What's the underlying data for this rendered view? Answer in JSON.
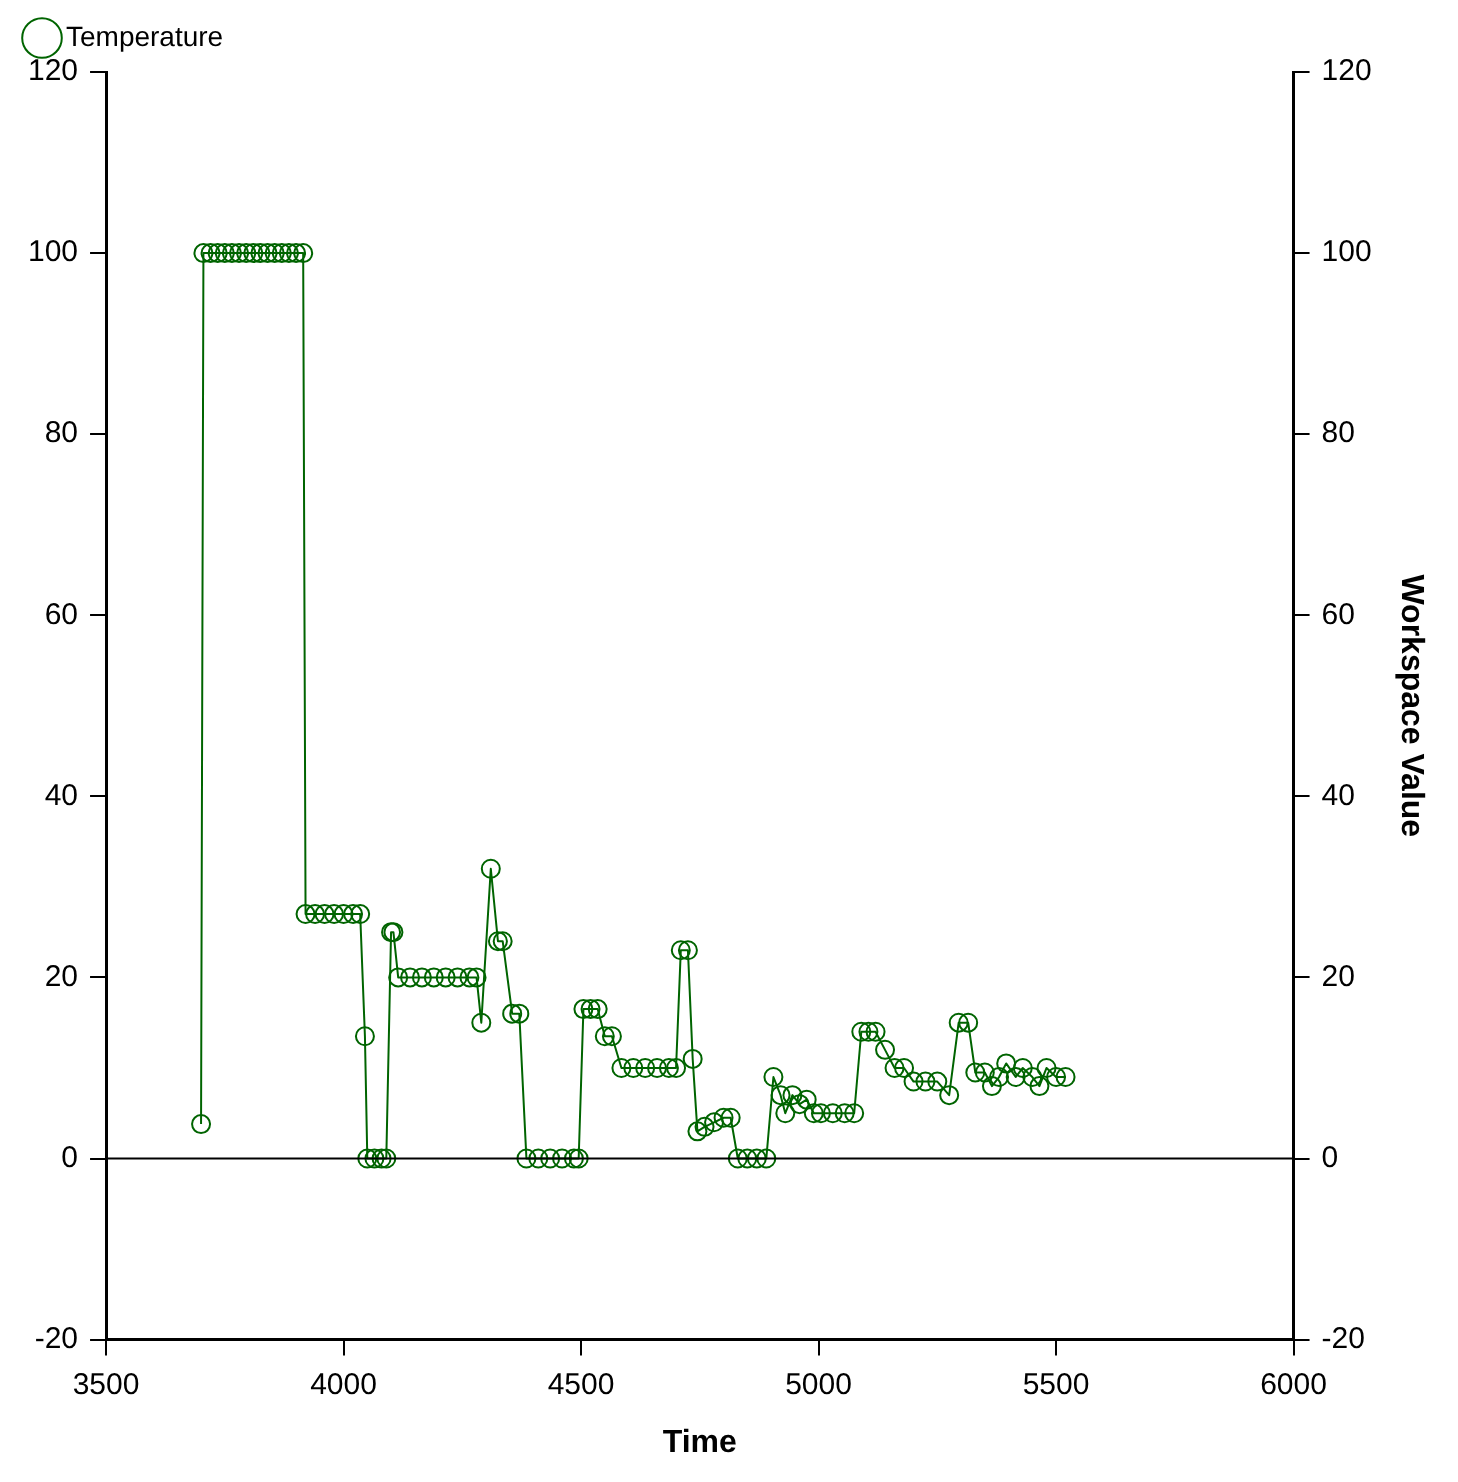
{
  "chart_data": {
    "type": "line",
    "xlabel": "Time",
    "y2label": "Workspace Value",
    "legend": "top left",
    "marker": "circle",
    "line_style": "solid",
    "grid": false,
    "xlim": [
      3500,
      6000
    ],
    "xticks": [
      3500,
      4000,
      4500,
      5000,
      5500,
      6000
    ],
    "ylim": [
      -20,
      120
    ],
    "yticks": [
      -20,
      0,
      20,
      40,
      60,
      80,
      100,
      120
    ],
    "y2lim": [
      -20,
      120
    ],
    "y2ticks": [
      -20,
      0,
      20,
      40,
      60,
      80,
      100,
      120
    ],
    "ref_lines": [
      {
        "axis": "y",
        "value": 0,
        "color": "#000000"
      }
    ],
    "series": [
      {
        "name": "Temperature",
        "color": "#006400",
        "x": [
          3700,
          3705,
          3720,
          3735,
          3750,
          3765,
          3780,
          3795,
          3810,
          3825,
          3840,
          3855,
          3870,
          3885,
          3900,
          3915,
          3920,
          3940,
          3960,
          3980,
          4000,
          4020,
          4035,
          4045,
          4050,
          4065,
          4080,
          4090,
          4100,
          4105,
          4115,
          4140,
          4165,
          4190,
          4215,
          4240,
          4265,
          4280,
          4290,
          4310,
          4325,
          4335,
          4355,
          4370,
          4385,
          4410,
          4435,
          4460,
          4485,
          4495,
          4505,
          4520,
          4535,
          4550,
          4565,
          4585,
          4610,
          4635,
          4660,
          4685,
          4700,
          4710,
          4725,
          4735,
          4745,
          4760,
          4780,
          4800,
          4815,
          4830,
          4850,
          4870,
          4890,
          4905,
          4920,
          4930,
          4945,
          4960,
          4975,
          4990,
          5005,
          5030,
          5055,
          5075,
          5090,
          5105,
          5120,
          5140,
          5160,
          5180,
          5200,
          5225,
          5250,
          5275,
          5295,
          5315,
          5330,
          5350,
          5365,
          5380,
          5395,
          5415,
          5430,
          5450,
          5465,
          5480,
          5500,
          5520
        ],
        "values": [
          3.8,
          100,
          100,
          100,
          100,
          100,
          100,
          100,
          100,
          100,
          100,
          100,
          100,
          100,
          100,
          100,
          27,
          27,
          27,
          27,
          27,
          27,
          27,
          13.5,
          0,
          0,
          0,
          0,
          25,
          25,
          20,
          20,
          20,
          20,
          20,
          20,
          20,
          20,
          15,
          32,
          24,
          24,
          16,
          16,
          0,
          0,
          0,
          0,
          0,
          0,
          16.5,
          16.5,
          16.5,
          13.5,
          13.5,
          10,
          10,
          10,
          10,
          10,
          10,
          23,
          23,
          11,
          3,
          3.5,
          4,
          4.5,
          4.5,
          0,
          0,
          0,
          0,
          9,
          7,
          5,
          7,
          6,
          6.5,
          5,
          5,
          5,
          5,
          5,
          14,
          14,
          14,
          12,
          10,
          10,
          8.5,
          8.5,
          8.5,
          7,
          15,
          15,
          9.5,
          9.5,
          8,
          9,
          10.5,
          9,
          10,
          9,
          8,
          10,
          9,
          9
        ]
      }
    ]
  }
}
